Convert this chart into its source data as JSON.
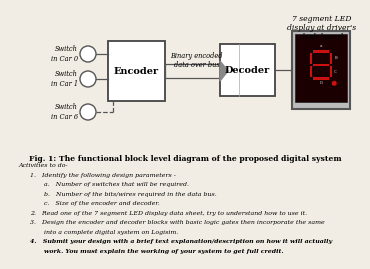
{
  "bg_color": "#f2ede4",
  "title": "Fig. 1: The functional block level diagram of the proposed digital system",
  "label_7seg": "7 segment LED\ndisplay at driver's\ndash board",
  "switches": [
    "Switch\nin Car 0",
    "Switch\nin Car 1",
    "Switch\nin Car 6"
  ],
  "encoder_label": "Encoder",
  "bus_label": "Binary encoded\ndata over bus",
  "decoder_label": "Decoder",
  "activities": [
    {
      "indent": 0,
      "bold": false,
      "text": "Activities to do-"
    },
    {
      "indent": 1,
      "bold": false,
      "text": "1.   Identify the following design parameters -"
    },
    {
      "indent": 2,
      "bold": false,
      "text": "a.   Number of switches that will be required."
    },
    {
      "indent": 2,
      "bold": false,
      "text": "b.   Number of the bits/wires required in the data bus."
    },
    {
      "indent": 2,
      "bold": false,
      "text": "c.   Size of the encoder and decoder."
    },
    {
      "indent": 1,
      "bold": false,
      "text": "2.   Read one of the 7 segment LED display data sheet, try to understand how to use it."
    },
    {
      "indent": 1,
      "bold": false,
      "text": "3.   Design the encoder and decoder blocks with basic logic gates then incorporate the same"
    },
    {
      "indent": 2,
      "bold": false,
      "text": "into a complete digital system on Logisim."
    },
    {
      "indent": 1,
      "bold": true,
      "text": "4.   Submit your design with a brief text explanation/description on how it will actually"
    },
    {
      "indent": 2,
      "bold": true,
      "text": "work. You must explain the working of your system to get full credit."
    }
  ]
}
